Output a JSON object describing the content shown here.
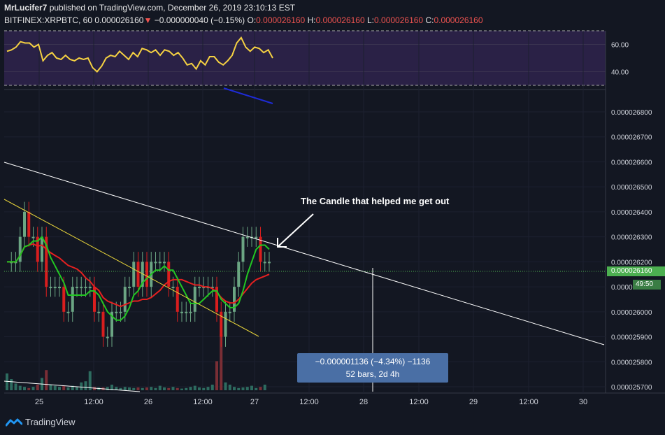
{
  "header": {
    "author": "MrLucifer7",
    "published": " published on TradingView.com, December 26, 2019 23:10:13 EST",
    "symbol": "BITFINEX:XRPBTC, 60",
    "last": "0.000026160",
    "change": "−0.000000040 (−0.15%)",
    "o_label": "O:",
    "o": "0.000026160",
    "h_label": "H:",
    "h": "0.000026160",
    "l_label": "L:",
    "l": "0.000026160",
    "c_label": "C:",
    "c": "0.000026160"
  },
  "annotation": "The Candle that helped me get out",
  "measure": {
    "line1": "−0.000001136 (−4.34%) −1136",
    "line2": "52 bars, 2d 4h"
  },
  "price_tags": {
    "last": "0.000026160",
    "countdown": "49:50"
  },
  "footer": {
    "brand": "TradingView"
  },
  "colors": {
    "bg": "#131722",
    "up": "#6ba583",
    "down": "#d91e1e",
    "rsi": "#f5d142",
    "ma_fast": "#22c722",
    "ma_slow": "#e52020",
    "last_tag": "#4caf50"
  },
  "chart_data": {
    "type": "candlestick",
    "x_ticks": [
      "25",
      "12:00",
      "26",
      "12:00",
      "27",
      "12:00",
      "28",
      "12:00",
      "29",
      "12:00",
      "30"
    ],
    "price_axis": [
      "0.000026800",
      "0.000026700",
      "0.000026600",
      "0.000026500",
      "0.000026400",
      "0.000026300",
      "0.000026200",
      "0.000026100",
      "0.000026000",
      "0.000025900",
      "0.000025800",
      "0.000025700"
    ],
    "rsi_axis": [
      "60.00",
      "40.00"
    ],
    "ylim": [
      2.57e-05,
      2.68e-05
    ],
    "rsi_ylim": [
      30,
      70
    ],
    "closes": [
      2.62e-05,
      2.62e-05,
      2.62e-05,
      2.63e-05,
      2.64e-05,
      2.63e-05,
      2.63e-05,
      2.62e-05,
      2.63e-05,
      2.61e-05,
      2.61e-05,
      2.61e-05,
      2.61e-05,
      2.6e-05,
      2.6e-05,
      2.61e-05,
      2.61e-05,
      2.61e-05,
      2.61e-05,
      2.61e-05,
      2.6e-05,
      2.6e-05,
      2.59e-05,
      2.59e-05,
      2.6e-05,
      2.6e-05,
      2.6e-05,
      2.61e-05,
      2.61e-05,
      2.62e-05,
      2.61e-05,
      2.62e-05,
      2.61e-05,
      2.62e-05,
      2.62e-05,
      2.62e-05,
      2.62e-05,
      2.61e-05,
      2.61e-05,
      2.6e-05,
      2.6e-05,
      2.6e-05,
      2.6e-05,
      2.61e-05,
      2.61e-05,
      2.61e-05,
      2.61e-05,
      2.61e-05,
      2.6e-05,
      2.59e-05,
      2.6e-05,
      2.6e-05,
      2.61e-05,
      2.62e-05,
      2.63e-05,
      2.63e-05,
      2.63e-05,
      2.63e-05,
      2.62e-05,
      2.62e-05,
      2.62e-05
    ],
    "rsi": [
      55,
      56,
      58,
      62,
      61,
      61,
      58,
      60,
      48,
      52,
      54,
      50,
      49,
      52,
      49,
      48,
      50,
      49,
      50,
      43,
      40,
      44,
      50,
      52,
      51,
      55,
      52,
      49,
      54,
      51,
      57,
      56,
      54,
      56,
      52,
      56,
      55,
      52,
      54,
      50,
      45,
      46,
      42,
      48,
      45,
      51,
      51,
      47,
      45,
      48,
      52,
      61,
      65,
      58,
      55,
      58,
      57,
      54,
      56,
      50
    ],
    "volume": [
      30,
      20,
      12,
      8,
      6,
      4,
      6,
      10,
      22,
      36,
      10,
      8,
      6,
      8,
      5,
      8,
      6,
      14,
      16,
      34,
      6,
      5,
      5,
      6,
      10,
      6,
      4,
      6,
      5,
      4,
      5,
      4,
      5,
      6,
      4,
      8,
      5,
      4,
      6,
      4,
      3,
      4,
      6,
      8,
      5,
      4,
      6,
      10,
      52,
      100,
      14,
      10,
      6,
      4,
      5,
      6,
      8,
      4,
      6,
      10
    ]
  }
}
